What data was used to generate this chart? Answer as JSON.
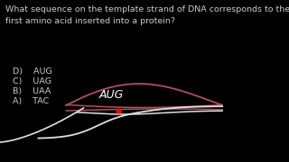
{
  "background_color": "#000000",
  "question_text": "What sequence on the template strand of DNA corresponds to the\nfirst amino acid inserted into a protein?",
  "choices": [
    "A)    TAC",
    "B)    UAA",
    "C)    UAG",
    "D)    AUG"
  ],
  "question_color": "#cccccc",
  "choice_color": "#cccccc",
  "question_fontsize": 6.8,
  "choice_fontsize": 6.8,
  "aug_label": "AUG",
  "aug_color": "#ffffff",
  "aug_fontsize": 9,
  "red_dot_color": "#ff0000",
  "strand_color_pink": "#b05060",
  "strand_color_white": "#e0e0e0"
}
